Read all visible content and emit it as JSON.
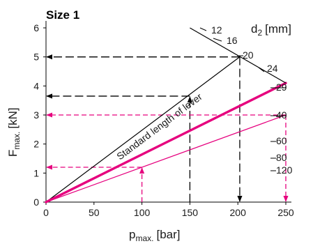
{
  "chart_data": {
    "type": "line",
    "title": "Size 1",
    "xlabel": {
      "main": "p",
      "sub": "max.",
      "unit": "[bar]"
    },
    "ylabel": {
      "main": "F",
      "sub": "max.",
      "unit": "[kN]"
    },
    "xlim": [
      0,
      250
    ],
    "ylim": [
      0,
      6
    ],
    "x_ticks": [
      "0",
      "50",
      "100",
      "150",
      "200",
      "250"
    ],
    "y_ticks": [
      "0",
      "1",
      "2",
      "3",
      "4",
      "5",
      "6"
    ],
    "grid": false,
    "d2_axis": {
      "label": {
        "main": "d",
        "sub": "2",
        "unit": "[mm]"
      },
      "values": [
        "12",
        "16",
        "20",
        "24",
        "29",
        "40",
        "60",
        "80",
        "120"
      ]
    },
    "lever_annotation": "Standard length of lever",
    "series": [
      {
        "color": "#000000",
        "line_width": "thin",
        "x": [
          0,
          202
        ],
        "y": [
          0,
          5.0
        ]
      },
      {
        "color": "#e6007e",
        "line_width": "thick",
        "x": [
          0,
          250
        ],
        "y": [
          0,
          4.1
        ]
      },
      {
        "color": "#e6007e",
        "line_width": "thin",
        "x": [
          0,
          250
        ],
        "y": [
          0,
          3.0
        ]
      }
    ],
    "d2_scale_line": {
      "color": "#000000",
      "x": [
        150,
        250
      ],
      "y": [
        6.0,
        4.1
      ]
    },
    "reading_examples": [
      {
        "color": "#000000",
        "start_x": 150,
        "start_y": 0,
        "up_to_y": 3.65,
        "arrow_to_x": 0,
        "arrow_y": 3.65
      },
      {
        "color": "#000000",
        "from_d2": "20",
        "at_x": 202,
        "at_y": 5.0,
        "arrow_to_x": 0,
        "down_to_y": 0
      },
      {
        "color": "#e6007e",
        "start_x": 100,
        "start_y": 0,
        "up_to_y": 1.2,
        "arrow_to_x": 0,
        "arrow_y": 1.2
      },
      {
        "color": "#e6007e",
        "from_d2": "40",
        "at_x": 250,
        "at_y": 3.0,
        "arrow_to_x": 0,
        "down_to_y": 0
      }
    ],
    "colors": {
      "accent": "#e6007e",
      "axis": "#000000"
    }
  }
}
